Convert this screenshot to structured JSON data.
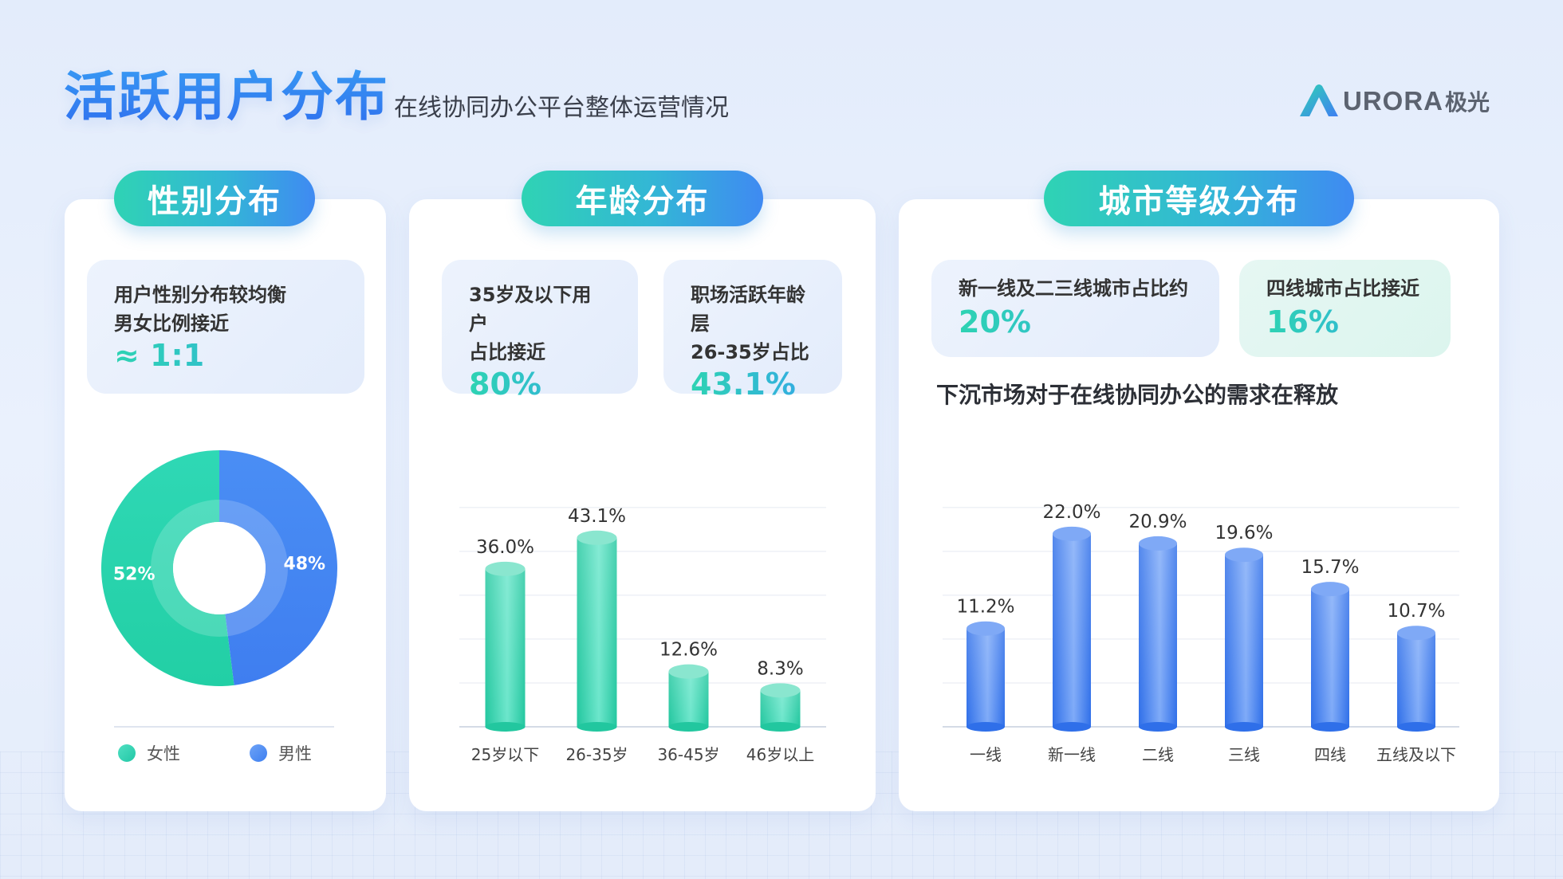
{
  "header": {
    "title": "活跃用户分布",
    "subtitle": "在线协同办公平台整体运营情况",
    "logo_text": "URORA",
    "logo_cn": "极光"
  },
  "gender": {
    "heading": "性别分布",
    "info_line1": "用户性别分布较均衡",
    "info_line2": "男女比例接近",
    "info_value": "≈ 1:1",
    "legend_female": "女性",
    "legend_male": "男性"
  },
  "age": {
    "heading": "年龄分布",
    "info1_line1": "35岁及以下用户",
    "info1_line2": "占比接近",
    "info1_value": "80%",
    "info2_line1": "职场活跃年龄层",
    "info2_line2": "26-35岁占比",
    "info2_value": "43.1%"
  },
  "city": {
    "heading": "城市等级分布",
    "info1_text": "新一线及二三线城市占比约",
    "info1_value": "20%",
    "info2_text": "四线城市占比接近",
    "info2_value": "16%",
    "note": "下沉市场对于在线协同办公的需求在释放"
  },
  "colors": {
    "teal": "#2fd3b4",
    "blue": "#4a8bf4",
    "bar_blue": "#3d82f2",
    "bar_teal": "#33d0ae"
  },
  "chart_data": [
    {
      "type": "pie",
      "donut": true,
      "labels": [
        "女性",
        "男性"
      ],
      "values": [
        52,
        48
      ],
      "value_labels": [
        "52%",
        "48%"
      ],
      "colors": [
        "#2fd3b4",
        "#4a8bf4"
      ]
    },
    {
      "type": "bar",
      "categories": [
        "25岁以下",
        "26-35岁",
        "36-45岁",
        "46岁以上"
      ],
      "values": [
        36.0,
        43.1,
        12.6,
        8.3
      ],
      "value_labels": [
        "36.0%",
        "43.1%",
        "12.6%",
        "8.3%"
      ],
      "ylim": [
        0,
        50
      ],
      "grid": true,
      "color": "#33d0ae"
    },
    {
      "type": "bar",
      "categories": [
        "一线",
        "新一线",
        "二线",
        "三线",
        "四线",
        "五线及以下"
      ],
      "values": [
        11.2,
        22.0,
        20.9,
        19.6,
        15.7,
        10.7
      ],
      "value_labels": [
        "11.2%",
        "22.0%",
        "20.9%",
        "19.6%",
        "15.7%",
        "10.7%"
      ],
      "ylim": [
        0,
        25
      ],
      "grid": true,
      "color": "#3d82f2"
    }
  ]
}
